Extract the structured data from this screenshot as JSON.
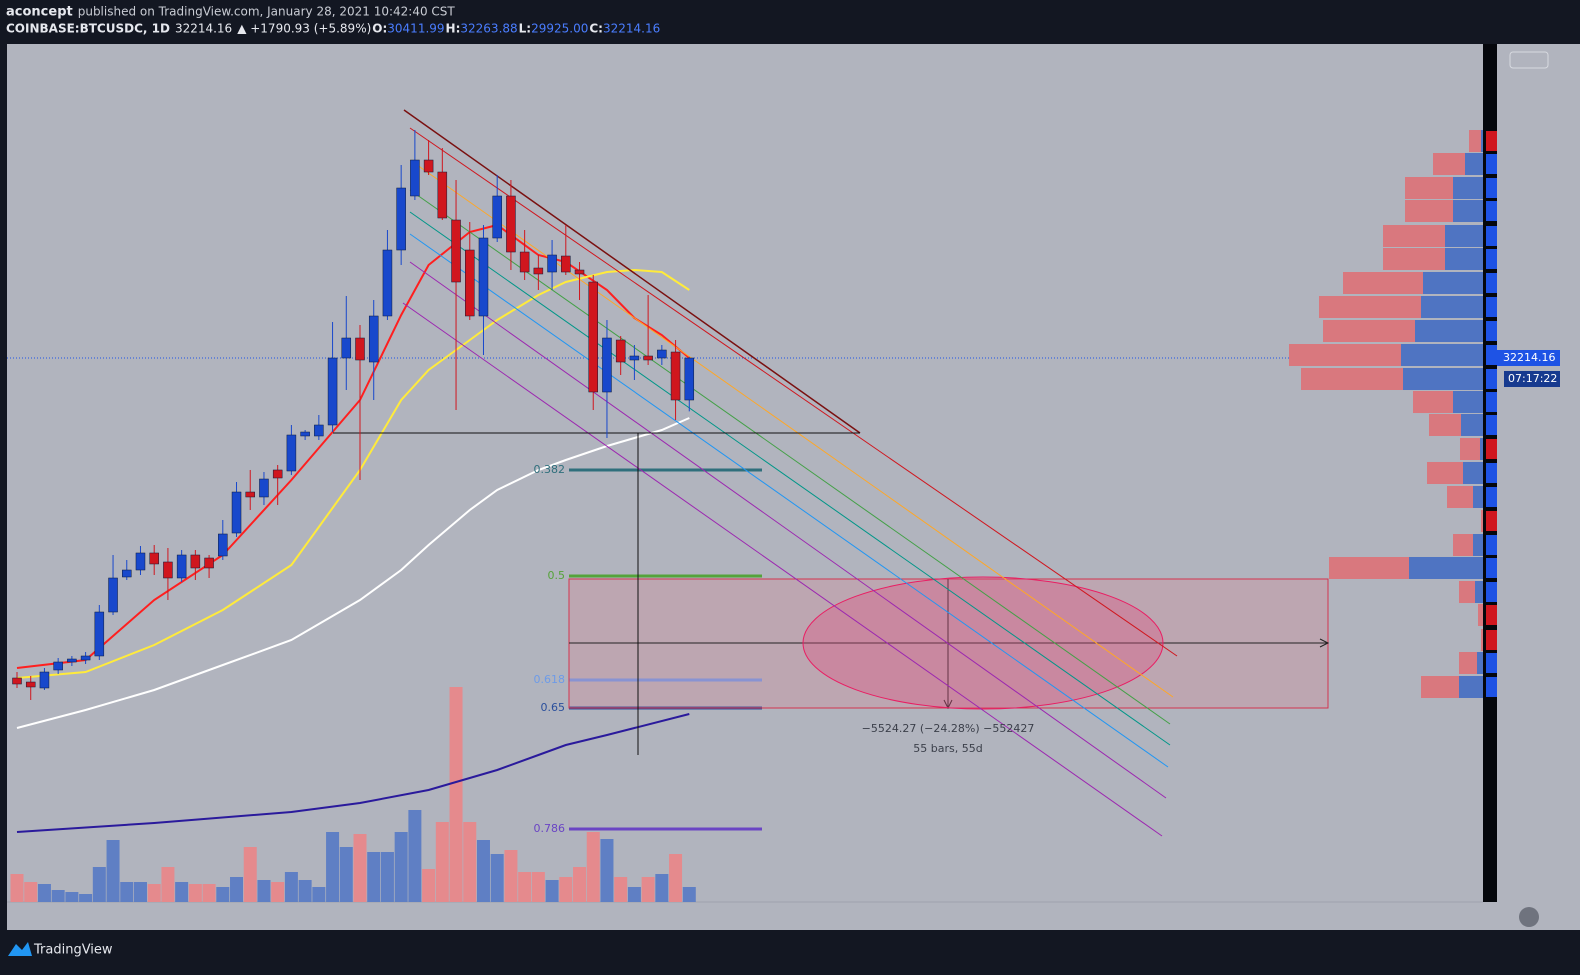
{
  "header": {
    "author": "aconcept",
    "published": "published on TradingView.com, January 28, 2021 10:42:40 CST",
    "symbol": "COINBASE:BTCUSDC, 1D",
    "last": "32214.16",
    "change": "▲ +1790.93 (+5.89%)",
    "o_label": "O:",
    "o": "30411.99",
    "h_label": "H:",
    "h": "32263.88",
    "l_label": "L:",
    "l": "29925.00",
    "c_label": "C:",
    "c": "32214.16"
  },
  "footer": {
    "brand": "TradingView"
  },
  "chart_data": {
    "type": "candlestick",
    "ylim": [
      8876,
      45685
    ],
    "up_color": "#1848cc",
    "down_color": "#d0161e",
    "open": [
      18486,
      18314,
      18057,
      18829,
      19172,
      19258,
      19430,
      21317,
      22819,
      23119,
      23849,
      23463,
      22776,
      23763,
      23634,
      23720,
      24706,
      26465,
      26251,
      27410,
      27366,
      28868,
      28868,
      29340,
      32214,
      33072,
      32042,
      34016,
      36847,
      39164,
      40708,
      40193,
      38134,
      36847,
      34016,
      37362,
      39164,
      36761,
      36075,
      35903,
      36590,
      35989,
      35474,
      30755,
      32986,
      32128,
      32300,
      32214,
      32471,
      30411.99
    ],
    "high": [
      18743,
      18572,
      18915,
      19344,
      19430,
      19601,
      21618,
      23763,
      23548,
      24149,
      24192,
      24063,
      23977,
      23977,
      23763,
      25264,
      26894,
      27410,
      27323,
      27624,
      29340,
      29125,
      29769,
      33758,
      34874,
      33630,
      34702,
      37705,
      40494,
      41995,
      41566,
      41223,
      39850,
      38048,
      37920,
      40065,
      39850,
      37705,
      36633,
      37276,
      37920,
      36332,
      35775,
      33844,
      33158,
      32772,
      34917,
      32772,
      32986,
      32263.88
    ],
    "low": [
      18057,
      17542,
      17971,
      18658,
      19001,
      19087,
      19258,
      21189,
      22690,
      22905,
      22905,
      21832,
      22604,
      22690,
      22776,
      23548,
      24535,
      25693,
      25908,
      25908,
      27195,
      28696,
      28696,
      29039,
      30841,
      26980,
      30412,
      33844,
      36204,
      38992,
      40065,
      38134,
      29983,
      33844,
      32343,
      37190,
      35989,
      35560,
      35131,
      35131,
      35775,
      34702,
      29983,
      28782,
      31485,
      31270,
      31914,
      31914,
      29554,
      29925
    ],
    "close": [
      18228,
      18100,
      18743,
      19172,
      19301,
      19430,
      21317,
      22776,
      23119,
      23849,
      23377,
      22776,
      23763,
      23205,
      23205,
      24664,
      26465,
      26251,
      27023,
      27066,
      28911,
      29039,
      29340,
      32214,
      33072,
      32128,
      34016,
      36847,
      39507,
      40708,
      40193,
      38220,
      35474,
      34016,
      37362,
      39164,
      36761,
      35903,
      35818,
      36633,
      35903,
      35818,
      30755,
      33072,
      32042,
      32300,
      32128,
      32557,
      30412,
      32214.16
    ],
    "volume": {
      "ylim": [
        0,
        858
      ],
      "up_color": "#5f7fc4",
      "down_color": "#e58a8d",
      "values": [
        28,
        20,
        18,
        12,
        10,
        8,
        35,
        62,
        20,
        20,
        18,
        35,
        20,
        18,
        18,
        15,
        25,
        55,
        22,
        20,
        30,
        22,
        15,
        70,
        55,
        68,
        50,
        50,
        70,
        92,
        33,
        80,
        215,
        80,
        62,
        48,
        52,
        30,
        30,
        22,
        25,
        35,
        70,
        63,
        25,
        15,
        25,
        28,
        48,
        15
      ]
    },
    "moving_averages": [
      {
        "color": "#ff1f1f",
        "x": [
          0,
          5,
          10,
          15,
          20,
          25,
          28,
          30,
          33,
          35,
          38,
          40,
          43,
          45,
          47,
          49
        ],
        "values": [
          18915,
          19258,
          21832,
          23763,
          26980,
          30412,
          34059,
          36204,
          37619,
          37920,
          36633,
          36332,
          35131,
          33930,
          33201,
          32214
        ]
      },
      {
        "color": "#ffeb3b",
        "x": [
          0,
          5,
          10,
          15,
          20,
          25,
          28,
          30,
          33,
          35,
          38,
          40,
          43,
          45,
          47,
          49
        ],
        "values": [
          18486,
          18743,
          19902,
          21403,
          23334,
          27410,
          30412,
          31699,
          32986,
          33844,
          34917,
          35474,
          35903,
          35989,
          35903,
          35131
        ]
      },
      {
        "color": "#ffffff",
        "x": [
          0,
          5,
          10,
          15,
          20,
          25,
          28,
          30,
          33,
          35,
          38,
          40,
          43,
          45,
          47,
          49
        ],
        "values": [
          16341,
          17113,
          17971,
          19044,
          20116,
          21832,
          23119,
          24192,
          25693,
          26551,
          27410,
          27838,
          28439,
          28782,
          29125,
          29640
        ]
      },
      {
        "color": "#2a1a9c",
        "x": [
          0,
          10,
          20,
          25,
          30,
          35,
          38,
          40,
          43,
          45,
          49
        ],
        "values": [
          11879,
          12265,
          12737,
          13124,
          13681,
          14539,
          15183,
          15612,
          16041,
          16341,
          16941
        ]
      }
    ],
    "fib_levels": [
      {
        "ratio": 0.382,
        "price": 27410,
        "color": "#2f6f7c"
      },
      {
        "ratio": 0.5,
        "price": 22862,
        "color": "#55a33a"
      },
      {
        "ratio": 0.618,
        "price": 18400,
        "color": "#6d9be8"
      },
      {
        "ratio": 0.65,
        "price": 17199,
        "color": "#2a4f9c"
      },
      {
        "ratio": 0.786,
        "price": 12008,
        "color": "#6a45c4"
      }
    ],
    "volume_profile": {
      "up_color": "#4f74c2",
      "down_color": "#d9787e",
      "prices": [
        41523,
        40537,
        39507,
        38520,
        37448,
        36461,
        35432,
        34402,
        33372,
        32343,
        31313,
        30326,
        29340,
        28310,
        27281,
        26251,
        25221,
        24192,
        23205,
        22175,
        21189,
        20116,
        19129,
        18100
      ],
      "up": [
        2,
        18,
        30,
        30,
        38,
        38,
        60,
        62,
        68,
        82,
        80,
        30,
        22,
        3,
        20,
        10,
        0,
        10,
        74,
        8,
        0,
        0,
        6,
        24
      ],
      "down": [
        12,
        32,
        48,
        48,
        62,
        62,
        80,
        102,
        92,
        112,
        102,
        40,
        32,
        20,
        36,
        26,
        2,
        20,
        80,
        16,
        5,
        2,
        18,
        38
      ]
    },
    "measure": {
      "change": "−5524.27 (−24.28%) −552427",
      "span": "55 bars, 55d"
    },
    "countdown": "07:17:22"
  }
}
